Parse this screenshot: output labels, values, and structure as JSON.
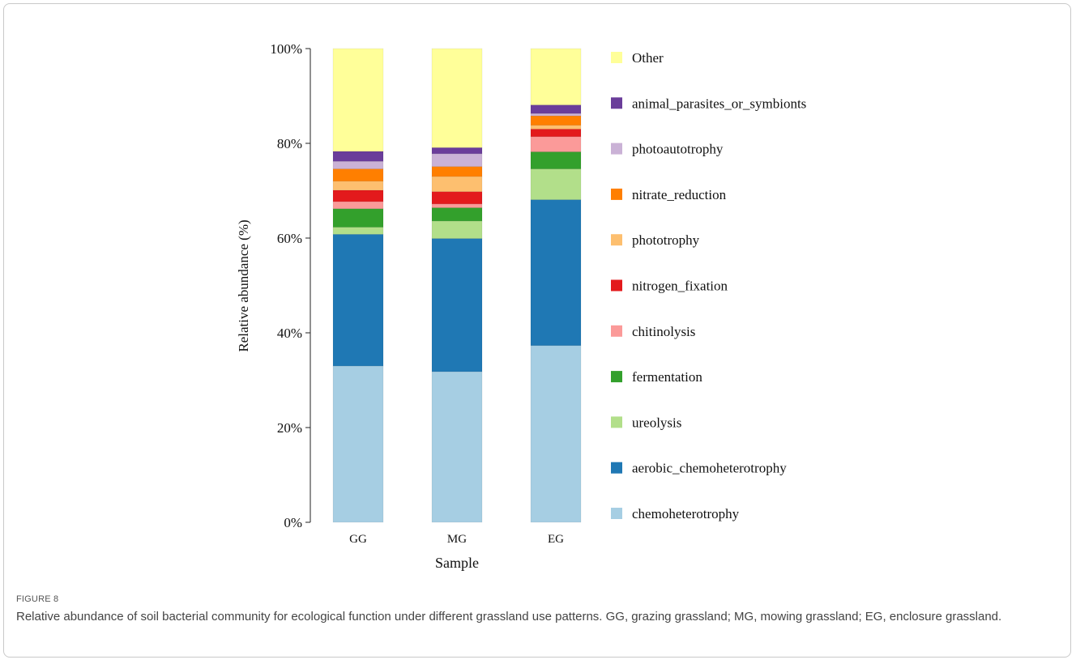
{
  "chart_data": {
    "type": "bar",
    "stacked": true,
    "percent_stacked": true,
    "categories": [
      "GG",
      "MG",
      "EG"
    ],
    "xlabel": "Sample",
    "ylabel": "Relative abundance (%)",
    "ylim": [
      0,
      100
    ],
    "yticks": [
      "0%",
      "20%",
      "40%",
      "60%",
      "80%",
      "100%"
    ],
    "grid": false,
    "legend_position": "right",
    "series": [
      {
        "name": "chemoheterotrophy",
        "color": "#a6cee3",
        "values": [
          33.0,
          31.8,
          37.3
        ]
      },
      {
        "name": "aerobic_chemoheterotrophy",
        "color": "#1f78b4",
        "values": [
          27.8,
          28.1,
          30.8
        ]
      },
      {
        "name": "ureolysis",
        "color": "#b2df8a",
        "values": [
          1.5,
          3.7,
          6.5
        ]
      },
      {
        "name": "fermentation",
        "color": "#33a02c",
        "values": [
          3.9,
          2.8,
          3.6
        ]
      },
      {
        "name": "chitinolysis",
        "color": "#fb9a99",
        "values": [
          1.5,
          0.8,
          3.2
        ]
      },
      {
        "name": "nitrogen_fixation",
        "color": "#e31a1c",
        "values": [
          2.4,
          2.6,
          1.6
        ]
      },
      {
        "name": "phototrophy",
        "color": "#fdbf6f",
        "values": [
          1.9,
          3.2,
          0.8
        ]
      },
      {
        "name": "nitrate_reduction",
        "color": "#ff7f00",
        "values": [
          2.6,
          2.1,
          2.0
        ]
      },
      {
        "name": "photoautotrophy",
        "color": "#cab2d6",
        "values": [
          1.6,
          2.7,
          0.5
        ]
      },
      {
        "name": "animal_parasites_or_symbionts",
        "color": "#6a3d9a",
        "values": [
          2.1,
          1.3,
          1.8
        ]
      },
      {
        "name": "Other",
        "color": "#ffff99",
        "values": [
          21.7,
          20.9,
          11.9
        ]
      }
    ]
  },
  "figure": {
    "label": "FIGURE 8",
    "caption": "Relative abundance of soil bacterial community for ecological function under different grassland use patterns. GG, grazing grassland; MG, mowing grassland; EG, enclosure grassland."
  }
}
